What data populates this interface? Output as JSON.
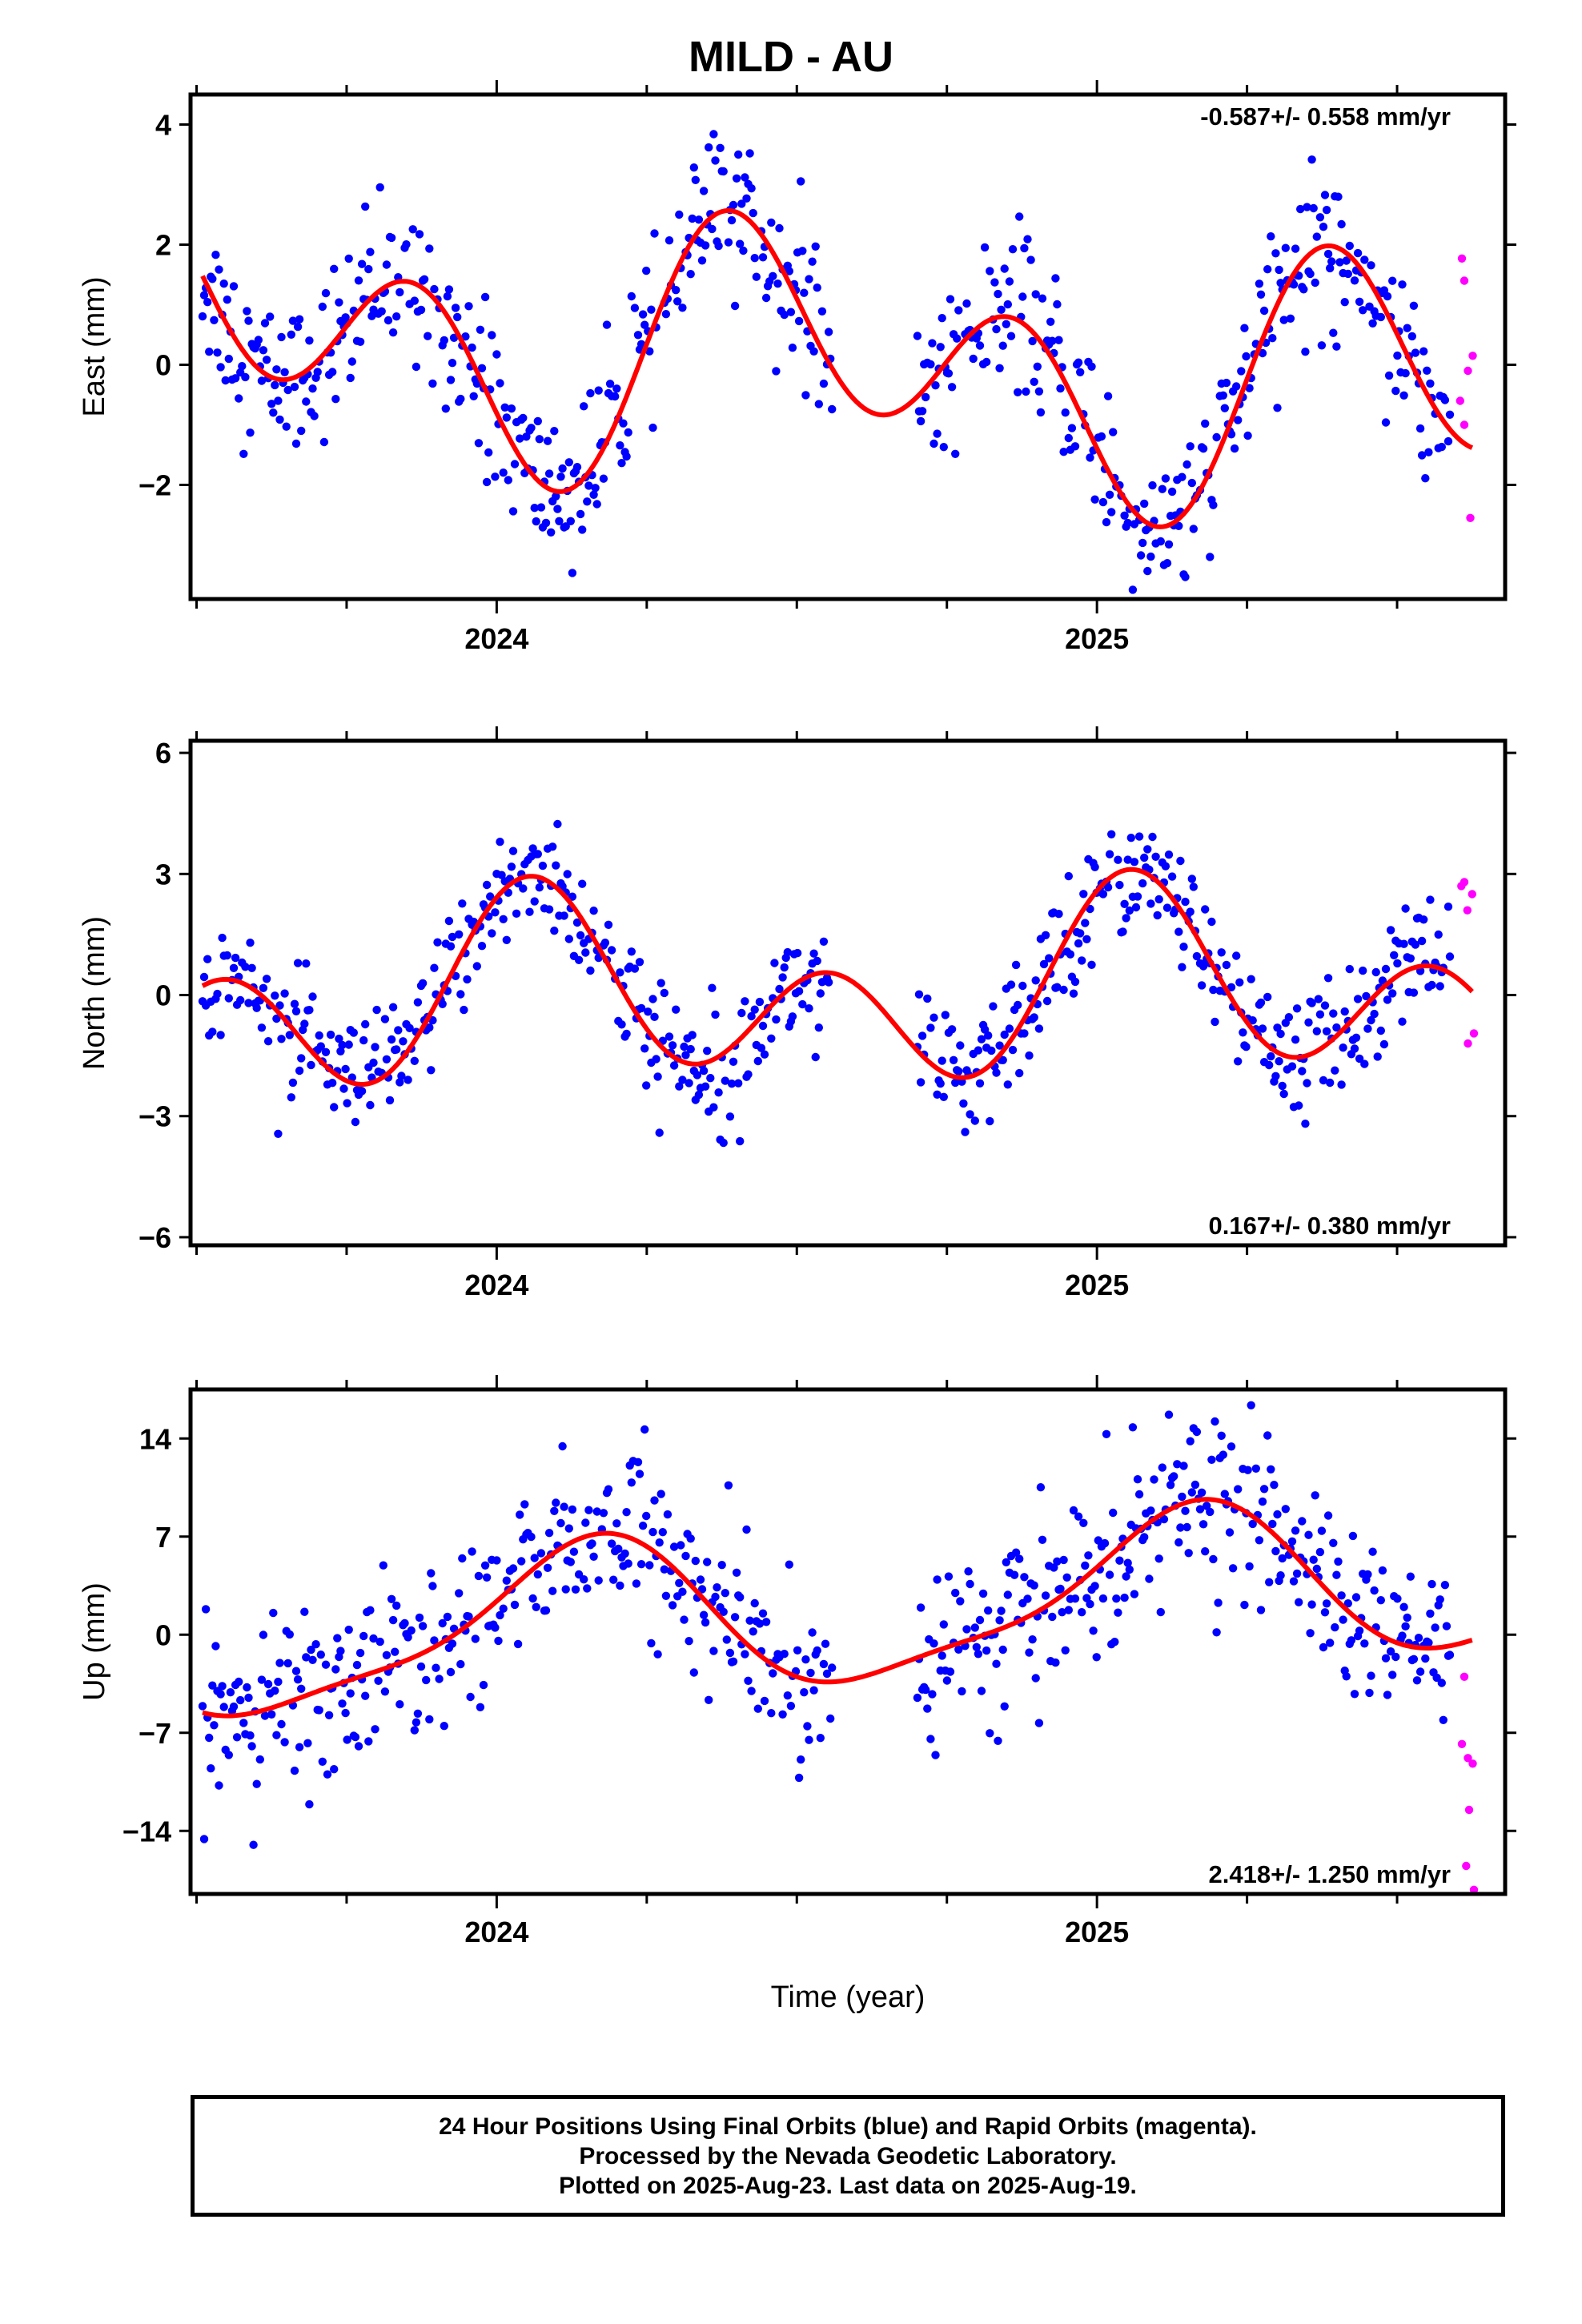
{
  "title": "MILD - AU",
  "xlabel": "Time (year)",
  "footer": {
    "line1": "24 Hour Positions Using Final Orbits (blue) and Rapid Orbits (magenta).",
    "line2": "Processed by the Nevada Geodetic Laboratory.",
    "line3": "Plotted on 2025-Aug-23. Last data on 2025-Aug-19."
  },
  "colors": {
    "final": "#0000ff",
    "rapid": "#ff00ff",
    "fit": "#ff0000",
    "axes": "#000000"
  },
  "chart_data": [
    {
      "type": "scatter",
      "component": "east",
      "ylabel": "East (mm)",
      "rate_text": "-0.587+/- 0.558 mm/yr",
      "xlim": [
        2023.49,
        2025.68
      ],
      "ylim": [
        -3.9,
        4.5
      ],
      "yticks": [
        -2,
        0,
        2,
        4
      ],
      "xticks": [
        2024,
        2025
      ],
      "x_minor_step": 0.25,
      "fit": {
        "offset": 0.1,
        "trend": -0.587,
        "a1s": 0.0,
        "a1c": -1.1,
        "a2s": -1.6,
        "a2c": -0.1,
        "steps": 0
      },
      "fit_range": [
        2023.51,
        2025.63
      ],
      "noise": 0.65,
      "rapid": [
        [
          2025.608,
          1.77
        ],
        [
          2025.612,
          1.4
        ],
        [
          2025.605,
          -0.6
        ],
        [
          2025.612,
          -1.0
        ],
        [
          2025.626,
          0.15
        ],
        [
          2025.622,
          -2.55
        ],
        [
          2025.618,
          -0.1
        ]
      ]
    },
    {
      "type": "scatter",
      "component": "north",
      "ylabel": "North (mm)",
      "rate_text": "0.167+/- 0.380 mm/yr",
      "xlim": [
        2023.49,
        2025.68
      ],
      "ylim": [
        -6.2,
        6.3
      ],
      "yticks": [
        -6,
        -3,
        0,
        3,
        6
      ],
      "xticks": [
        2024,
        2025
      ],
      "x_minor_step": 0.25,
      "fit": {
        "offset": 0.0,
        "trend": 0.167,
        "a1s": 0.6,
        "a1c": 1.1,
        "a2s": 1.1,
        "a2c": 1.4,
        "steps": 0
      },
      "fit_range": [
        2023.51,
        2025.63
      ],
      "noise": 0.75,
      "rapid": [
        [
          2025.607,
          2.7
        ],
        [
          2025.612,
          2.8
        ],
        [
          2025.617,
          2.1
        ],
        [
          2025.625,
          2.5
        ],
        [
          2025.618,
          -1.2
        ],
        [
          2025.628,
          -0.95
        ]
      ]
    },
    {
      "type": "scatter",
      "component": "up",
      "ylabel": "Up (mm)",
      "rate_text": "2.418+/- 1.250 mm/yr",
      "xlim": [
        2023.49,
        2025.68
      ],
      "ylim": [
        -18.5,
        17.5
      ],
      "yticks": [
        -14,
        -7,
        0,
        7,
        14
      ],
      "xticks": [
        2024,
        2025
      ],
      "x_minor_step": 0.25,
      "fit": {
        "offset": 1.5,
        "trend": 2.418,
        "a1s": 4.2,
        "a1c": 3.3,
        "a2s": 0.7,
        "a2c": -1.2,
        "steps": 0
      },
      "fit_range": [
        2023.51,
        2025.63
      ],
      "noise": 3.0,
      "rapid": [
        [
          2025.608,
          -7.8
        ],
        [
          2025.612,
          -3.0
        ],
        [
          2025.618,
          -8.8
        ],
        [
          2025.626,
          -9.2
        ],
        [
          2025.62,
          -12.5
        ],
        [
          2025.615,
          -16.5
        ],
        [
          2025.628,
          -18.2
        ]
      ]
    }
  ]
}
